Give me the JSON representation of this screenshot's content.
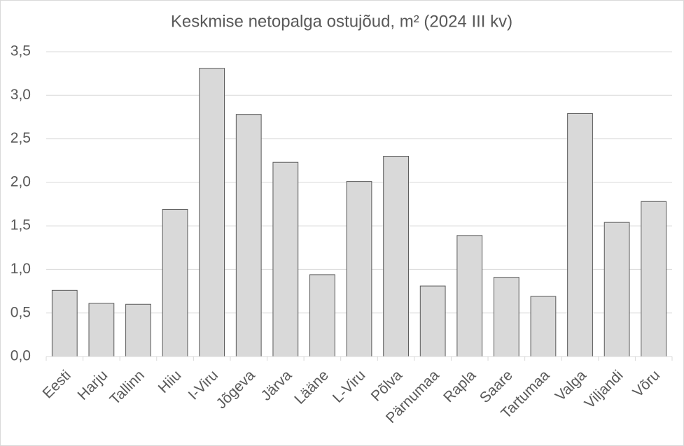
{
  "chart_data": {
    "type": "bar",
    "title": "Keskmise netopalga ostujõud, m² (2024 III kv)",
    "categories": [
      "Eesti",
      "Harju",
      "Tallinn",
      "Hiiu",
      "I-Viru",
      "Jõgeva",
      "Järva",
      "Lääne",
      "L-Viru",
      "Põlva",
      "Pärnumaa",
      "Rapla",
      "Saare",
      "Tartumaa",
      "Valga",
      "Viljandi",
      "Võru"
    ],
    "values": [
      0.76,
      0.61,
      0.6,
      1.69,
      3.31,
      2.78,
      2.23,
      0.94,
      2.01,
      2.3,
      0.81,
      1.39,
      0.91,
      0.69,
      2.79,
      1.54,
      1.78
    ],
    "color": "#d9d9d9",
    "ylim": [
      0,
      3.5
    ],
    "yticks": [
      {
        "value": 0,
        "label": "0,0"
      },
      {
        "value": 0.5,
        "label": "0,5"
      },
      {
        "value": 1,
        "label": "1,0"
      },
      {
        "value": 1.5,
        "label": "1,5"
      },
      {
        "value": 2,
        "label": "2,0"
      },
      {
        "value": 2.5,
        "label": "2,5"
      },
      {
        "value": 3,
        "label": "3,0"
      },
      {
        "value": 3.5,
        "label": "3,5"
      }
    ],
    "grid": true
  }
}
